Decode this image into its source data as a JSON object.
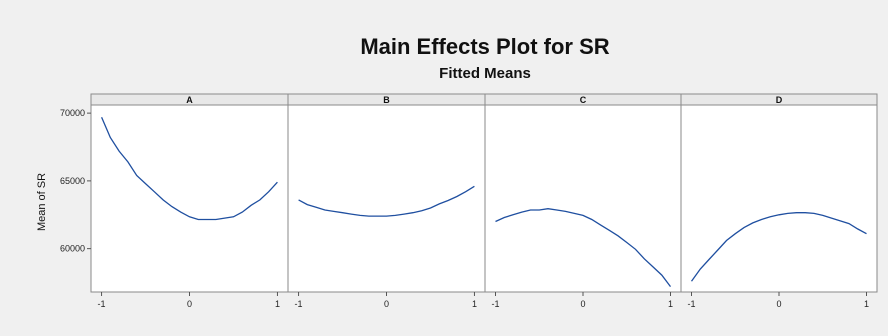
{
  "chart_data": {
    "type": "line",
    "title": "Main Effects Plot for SR",
    "subtitle": "Fitted Means",
    "ylabel": "Mean of SR",
    "xlabel": "",
    "ylim": [
      56800,
      70600
    ],
    "xlim": [
      -1.12,
      1.12
    ],
    "y_ticks": [
      60000,
      65000,
      70000
    ],
    "y_tick_labels": [
      "60000",
      "65000",
      "70000"
    ],
    "x_ticks": [
      -1,
      0,
      1
    ],
    "x_tick_labels": [
      "-1",
      "0",
      "1"
    ],
    "grid": false,
    "line_color": "#1f4fa0",
    "panels": [
      {
        "name": "A",
        "x": [
          -1,
          -0.9,
          -0.8,
          -0.7,
          -0.6,
          -0.5,
          -0.4,
          -0.3,
          -0.2,
          -0.1,
          0,
          0.1,
          0.2,
          0.3,
          0.4,
          0.5,
          0.6,
          0.7,
          0.8,
          0.9,
          1
        ],
        "y": [
          69700,
          68200,
          67200,
          66400,
          65400,
          64800,
          64200,
          63600,
          63100,
          62700,
          62350,
          62150,
          62150,
          62150,
          62250,
          62350,
          62700,
          63200,
          63600,
          64200,
          64900
        ]
      },
      {
        "name": "B",
        "x": [
          -1,
          -0.9,
          -0.8,
          -0.7,
          -0.6,
          -0.5,
          -0.4,
          -0.3,
          -0.2,
          -0.1,
          0,
          0.1,
          0.2,
          0.3,
          0.4,
          0.5,
          0.6,
          0.7,
          0.8,
          0.9,
          1
        ],
        "y": [
          63600,
          63250,
          63050,
          62850,
          62750,
          62650,
          62550,
          62450,
          62400,
          62400,
          62400,
          62450,
          62550,
          62650,
          62800,
          63000,
          63300,
          63550,
          63850,
          64200,
          64600
        ]
      },
      {
        "name": "C",
        "x": [
          -1,
          -0.9,
          -0.8,
          -0.7,
          -0.6,
          -0.5,
          -0.4,
          -0.3,
          -0.2,
          -0.1,
          0,
          0.1,
          0.2,
          0.3,
          0.4,
          0.5,
          0.6,
          0.7,
          0.8,
          0.9,
          1
        ],
        "y": [
          62000,
          62300,
          62500,
          62700,
          62850,
          62850,
          62950,
          62850,
          62750,
          62600,
          62450,
          62150,
          61750,
          61350,
          60950,
          60450,
          59950,
          59250,
          58650,
          58050,
          57200
        ]
      },
      {
        "name": "D",
        "x": [
          -1,
          -0.9,
          -0.8,
          -0.7,
          -0.6,
          -0.5,
          -0.4,
          -0.3,
          -0.2,
          -0.1,
          0,
          0.1,
          0.2,
          0.3,
          0.4,
          0.5,
          0.6,
          0.7,
          0.8,
          0.9,
          1
        ],
        "y": [
          57600,
          58500,
          59200,
          59900,
          60600,
          61100,
          61550,
          61900,
          62150,
          62350,
          62500,
          62600,
          62650,
          62650,
          62600,
          62450,
          62250,
          62050,
          61850,
          61450,
          61100
        ]
      }
    ]
  }
}
